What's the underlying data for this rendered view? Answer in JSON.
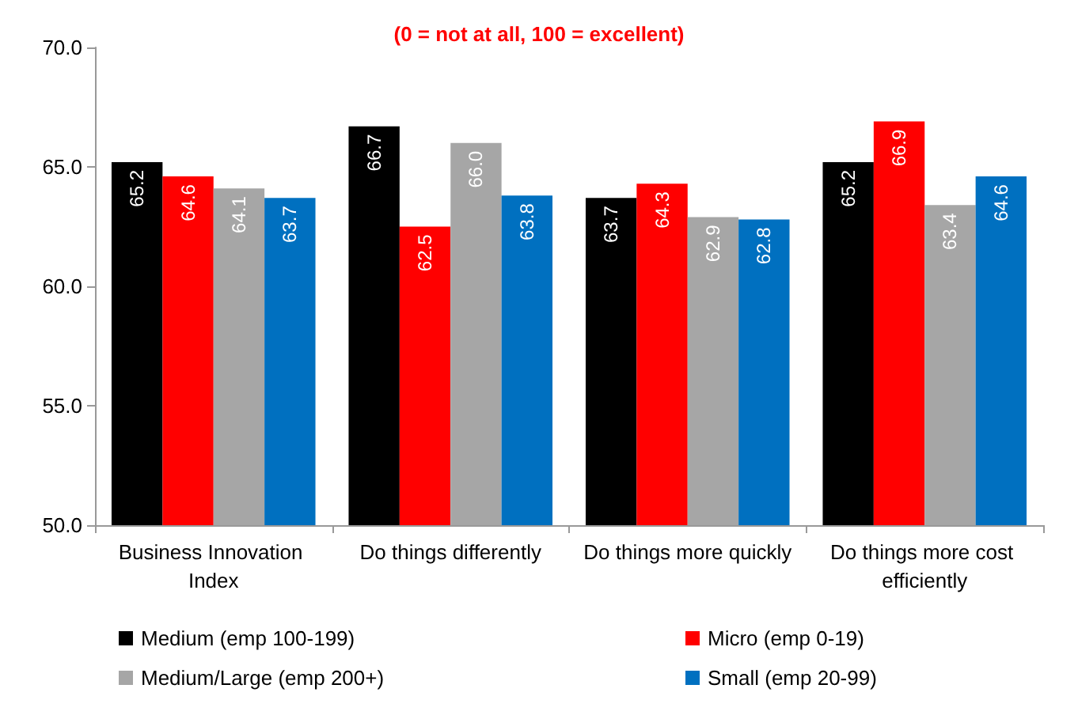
{
  "chart_data": {
    "type": "bar",
    "subtitle": "(0 = not at all, 100 = excellent)",
    "categories": [
      "Business Innovation Index",
      "Do things differently",
      "Do things more quickly",
      "Do things more cost efficiently"
    ],
    "series": [
      {
        "name": "Medium (emp 100-199)",
        "color": "#000000",
        "values": [
          65.2,
          66.7,
          63.7,
          65.2
        ],
        "value_labels": [
          "65.2",
          "66.7",
          "63.7",
          "65.2"
        ]
      },
      {
        "name": "Micro (emp 0-19)",
        "color": "#ff0000",
        "values": [
          64.6,
          62.5,
          64.3,
          66.9
        ],
        "value_labels": [
          "64.6",
          "62.5",
          "64.3",
          "66.9"
        ]
      },
      {
        "name": "Medium/Large (emp 200+)",
        "color": "#a6a6a6",
        "values": [
          64.1,
          66.0,
          62.9,
          63.4
        ],
        "value_labels": [
          "64.1",
          "66.0",
          "62.9",
          "63.4"
        ]
      },
      {
        "name": "Small (emp 20-99)",
        "color": "#0070c0",
        "values": [
          63.7,
          63.8,
          62.8,
          64.6
        ],
        "value_labels": [
          "63.7",
          "63.8",
          "62.8",
          "64.6"
        ]
      }
    ],
    "ylim": [
      50,
      70
    ],
    "yticks": [
      {
        "value": 50,
        "label": "50.0"
      },
      {
        "value": 55,
        "label": "55.0"
      },
      {
        "value": 60,
        "label": "60.0"
      },
      {
        "value": 65,
        "label": "65.0"
      },
      {
        "value": 70,
        "label": "70.0"
      }
    ],
    "legend": "bottom"
  }
}
